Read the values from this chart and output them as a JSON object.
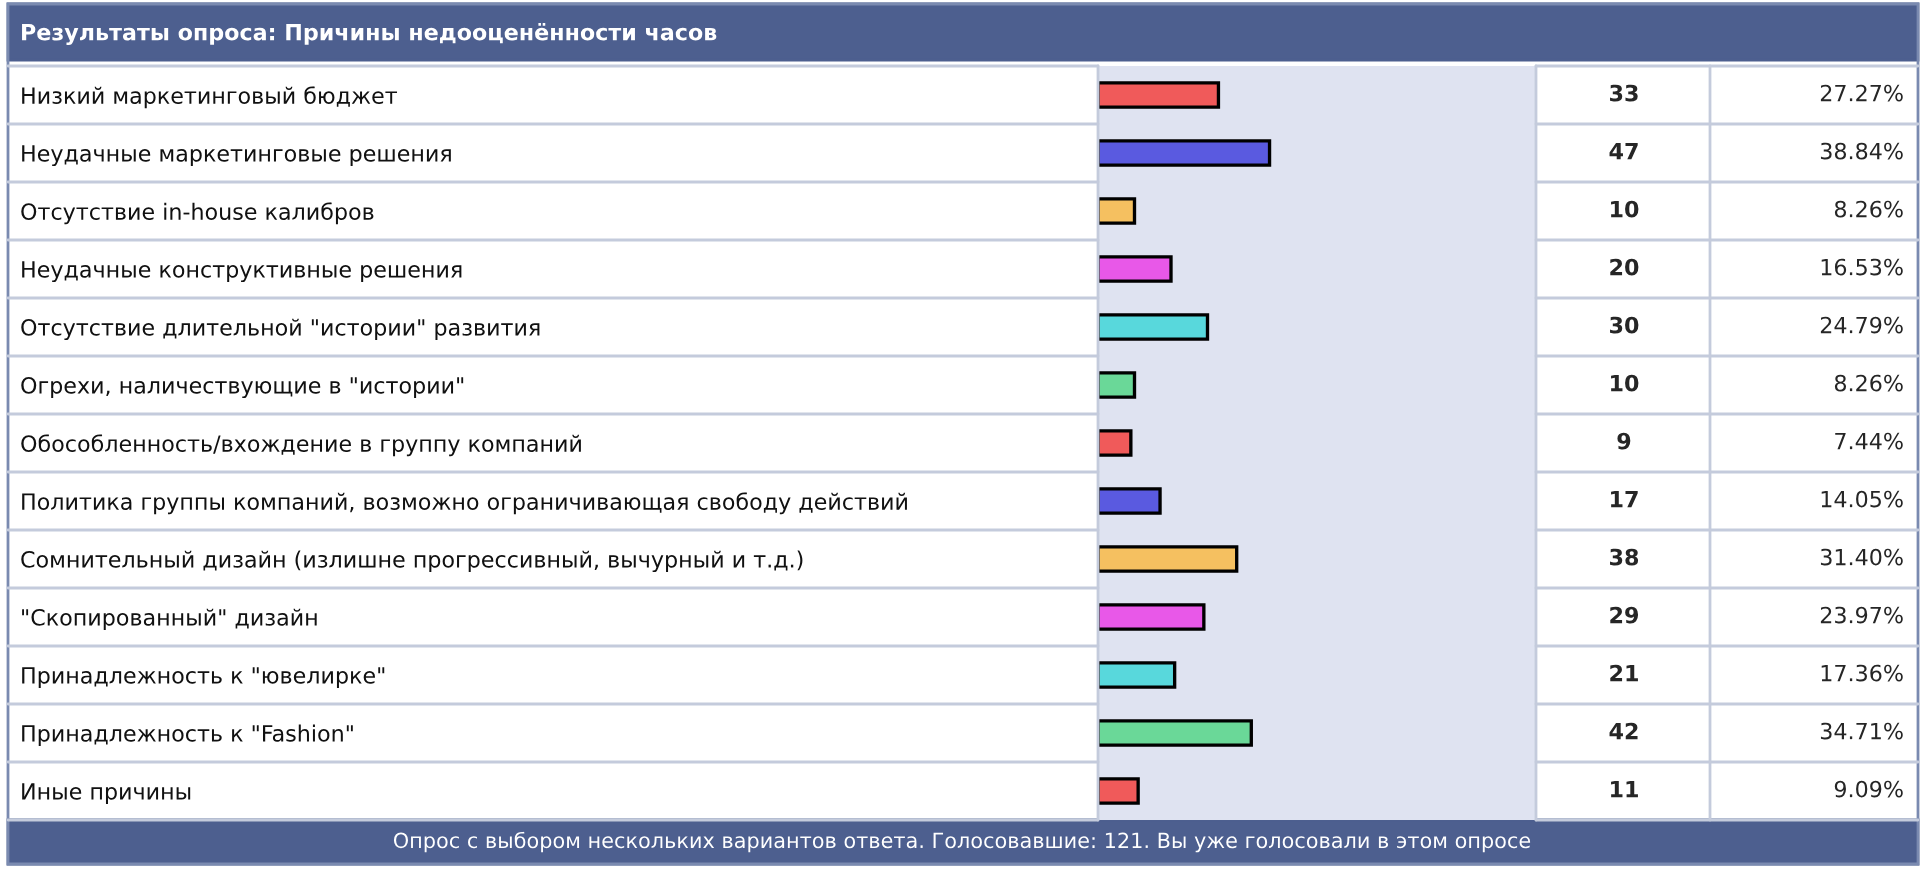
{
  "chart_data": {
    "type": "bar",
    "orientation": "horizontal",
    "title": "Результаты опроса: Причины недооценённости часов",
    "categories": [
      "Низкий маркетинговый бюджет",
      "Неудачные маркетинговые решения",
      "Отсутствие in-house калибров",
      "Неудачные конструктивные решения",
      "Отсутствие длительной \"истории\" развития",
      "Огрехи, наличествующие в \"истории\"",
      "Обособленность/вхождение в группу компаний",
      "Политика группы компаний, возможно ограничивающая свободу действий",
      "Сомнительный дизайн (излишне прогрессивный, вычурный и т.д.)",
      "\"Скопированный\" дизайн",
      "Принадлежность к \"ювелирке\"",
      "Принадлежность к \"Fashion\"",
      "Иные причины"
    ],
    "values": [
      33,
      47,
      10,
      20,
      30,
      10,
      9,
      17,
      38,
      29,
      21,
      42,
      11
    ],
    "colors": [
      "#f05a5a",
      "#5a5ae0",
      "#f5c060",
      "#e858e8",
      "#58d8dc",
      "#6ad898",
      "#f05a5a",
      "#5a5ae0",
      "#f5c060",
      "#e858e8",
      "#58d8dc",
      "#6ad898",
      "#f05a5a"
    ],
    "xlim": [
      0,
      120
    ],
    "data_labels": true,
    "annotations": [
      "27.27%",
      "38.84%",
      "8.26%",
      "16.53%",
      "24.79%",
      "8.26%",
      "7.44%",
      "14.05%",
      "31.40%",
      "23.97%",
      "17.36%",
      "34.71%",
      "9.09%",
      "Опрос с выбором нескольких вариантов ответа. Голосовавшие: 121. Вы уже голосовали в этом опросе"
    ]
  }
}
